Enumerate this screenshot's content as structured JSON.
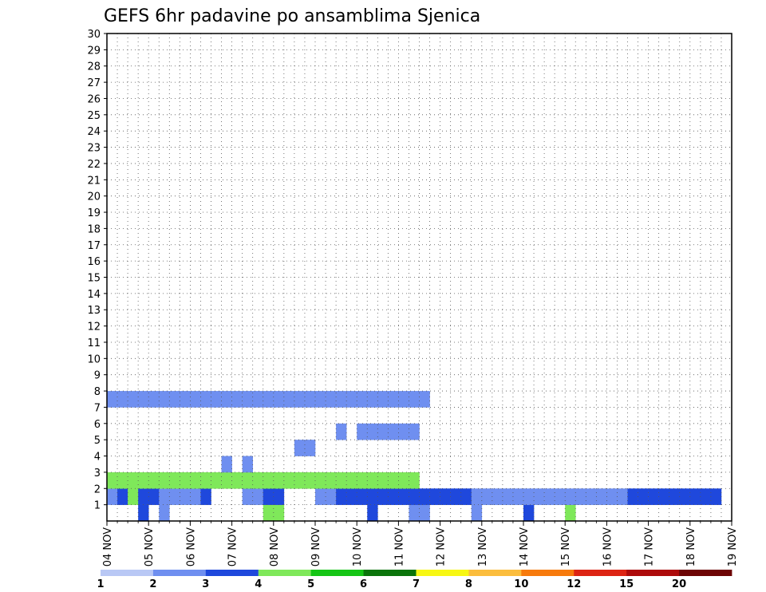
{
  "chart_data": {
    "type": "heatmap",
    "title": "GEFS 6hr padavine po ansamblima Sjenica",
    "xlabel": "",
    "ylabel": "",
    "x_ticks": [
      "04 NOV",
      "05 NOV",
      "06 NOV",
      "07 NOV",
      "08 NOV",
      "09 NOV",
      "10 NOV",
      "11 NOV",
      "12 NOV",
      "13 NOV",
      "14 NOV",
      "15 NOV",
      "16 NOV",
      "17 NOV",
      "18 NOV",
      "19 NOV"
    ],
    "y_ticks": [
      1,
      2,
      3,
      4,
      5,
      6,
      7,
      8,
      9,
      10,
      11,
      12,
      13,
      14,
      15,
      16,
      17,
      18,
      19,
      20,
      21,
      22,
      23,
      24,
      25,
      26,
      27,
      28,
      29,
      30
    ],
    "xlim": [
      "04 NOV",
      "19 NOV"
    ],
    "ylim": [
      0,
      30
    ],
    "x_step": "6hr",
    "grid": true,
    "colorbar": {
      "position": "bottom",
      "boundaries": [
        1,
        2,
        3,
        4,
        5,
        6,
        7,
        8,
        10,
        12,
        15,
        20
      ],
      "labels": [
        "1",
        "2",
        "3",
        "4",
        "5",
        "6",
        "7",
        "8",
        "10",
        "12",
        "15",
        "20"
      ],
      "colors": [
        "#b9c8f5",
        "#6f8ff0",
        "#1f48dc",
        "#7fe85a",
        "#15c515",
        "#0a740a",
        "#f7f713",
        "#fbbd3d",
        "#f77a0c",
        "#dd2413",
        "#ad0a0a",
        "#6d0505"
      ]
    },
    "cell_columns_note": "x index = 6hr steps from 04 NOV 00Z (0..59)",
    "cells": [
      [
        1,
        3,
        2
      ],
      [
        1,
        5,
        1
      ],
      [
        1,
        15,
        3
      ],
      [
        1,
        16,
        3
      ],
      [
        1,
        25,
        2
      ],
      [
        1,
        29,
        1
      ],
      [
        1,
        30,
        1
      ],
      [
        1,
        35,
        1
      ],
      [
        1,
        40,
        2
      ],
      [
        1,
        44,
        3
      ],
      [
        2,
        0,
        1
      ],
      [
        2,
        1,
        2
      ],
      [
        2,
        2,
        3
      ],
      [
        2,
        3,
        2
      ],
      [
        2,
        4,
        2
      ],
      [
        2,
        5,
        1
      ],
      [
        2,
        6,
        1
      ],
      [
        2,
        7,
        1
      ],
      [
        2,
        8,
        1
      ],
      [
        2,
        9,
        2
      ],
      [
        2,
        13,
        1
      ],
      [
        2,
        14,
        1
      ],
      [
        2,
        15,
        2
      ],
      [
        2,
        16,
        2
      ],
      [
        2,
        20,
        1
      ],
      [
        2,
        21,
        1
      ],
      [
        2,
        22,
        2
      ],
      [
        2,
        23,
        2
      ],
      [
        2,
        24,
        2
      ],
      [
        2,
        25,
        2
      ],
      [
        2,
        26,
        2
      ],
      [
        2,
        27,
        2
      ],
      [
        2,
        28,
        2
      ],
      [
        2,
        29,
        2
      ],
      [
        2,
        30,
        2
      ],
      [
        2,
        31,
        2
      ],
      [
        2,
        32,
        2
      ],
      [
        2,
        33,
        2
      ],
      [
        2,
        34,
        2
      ],
      [
        2,
        35,
        1
      ],
      [
        2,
        36,
        1
      ],
      [
        2,
        37,
        1
      ],
      [
        2,
        38,
        1
      ],
      [
        2,
        39,
        1
      ],
      [
        2,
        40,
        1
      ],
      [
        2,
        41,
        1
      ],
      [
        2,
        42,
        1
      ],
      [
        2,
        43,
        1
      ],
      [
        2,
        44,
        1
      ],
      [
        2,
        45,
        1
      ],
      [
        2,
        46,
        1
      ],
      [
        2,
        47,
        1
      ],
      [
        2,
        48,
        1
      ],
      [
        2,
        49,
        1
      ],
      [
        2,
        50,
        2
      ],
      [
        2,
        51,
        2
      ],
      [
        2,
        52,
        2
      ],
      [
        2,
        53,
        2
      ],
      [
        2,
        54,
        2
      ],
      [
        2,
        55,
        2
      ],
      [
        2,
        56,
        2
      ],
      [
        2,
        57,
        2
      ],
      [
        2,
        58,
        2
      ],
      [
        3,
        0,
        3
      ],
      [
        3,
        1,
        3
      ],
      [
        3,
        2,
        3
      ],
      [
        3,
        3,
        3
      ],
      [
        3,
        4,
        3
      ],
      [
        3,
        5,
        3
      ],
      [
        3,
        6,
        3
      ],
      [
        3,
        7,
        3
      ],
      [
        3,
        8,
        3
      ],
      [
        3,
        9,
        3
      ],
      [
        3,
        10,
        3
      ],
      [
        3,
        11,
        3
      ],
      [
        3,
        12,
        3
      ],
      [
        3,
        13,
        3
      ],
      [
        3,
        14,
        3
      ],
      [
        3,
        15,
        3
      ],
      [
        3,
        16,
        3
      ],
      [
        3,
        17,
        3
      ],
      [
        3,
        18,
        3
      ],
      [
        3,
        19,
        3
      ],
      [
        3,
        20,
        3
      ],
      [
        3,
        21,
        3
      ],
      [
        3,
        22,
        3
      ],
      [
        3,
        23,
        3
      ],
      [
        3,
        24,
        3
      ],
      [
        3,
        25,
        3
      ],
      [
        3,
        26,
        3
      ],
      [
        3,
        27,
        3
      ],
      [
        3,
        28,
        3
      ],
      [
        3,
        29,
        3
      ],
      [
        4,
        11,
        1
      ],
      [
        4,
        13,
        1
      ],
      [
        5,
        18,
        1
      ],
      [
        5,
        19,
        1
      ],
      [
        6,
        22,
        1
      ],
      [
        6,
        24,
        1
      ],
      [
        6,
        25,
        1
      ],
      [
        6,
        26,
        1
      ],
      [
        6,
        27,
        1
      ],
      [
        6,
        28,
        1
      ],
      [
        6,
        29,
        1
      ],
      [
        8,
        0,
        1
      ],
      [
        8,
        1,
        1
      ],
      [
        8,
        2,
        1
      ],
      [
        8,
        3,
        1
      ],
      [
        8,
        4,
        1
      ],
      [
        8,
        5,
        1
      ],
      [
        8,
        6,
        1
      ],
      [
        8,
        7,
        1
      ],
      [
        8,
        8,
        1
      ],
      [
        8,
        9,
        1
      ],
      [
        8,
        10,
        1
      ],
      [
        8,
        11,
        1
      ],
      [
        8,
        12,
        1
      ],
      [
        8,
        13,
        1
      ],
      [
        8,
        14,
        1
      ],
      [
        8,
        15,
        1
      ],
      [
        8,
        16,
        1
      ],
      [
        8,
        17,
        1
      ],
      [
        8,
        18,
        1
      ],
      [
        8,
        19,
        1
      ],
      [
        8,
        20,
        1
      ],
      [
        8,
        21,
        1
      ],
      [
        8,
        22,
        1
      ],
      [
        8,
        23,
        1
      ],
      [
        8,
        24,
        1
      ],
      [
        8,
        25,
        1
      ],
      [
        8,
        26,
        1
      ],
      [
        8,
        27,
        1
      ],
      [
        8,
        28,
        1
      ],
      [
        8,
        29,
        1
      ],
      [
        8,
        30,
        1
      ]
    ]
  }
}
